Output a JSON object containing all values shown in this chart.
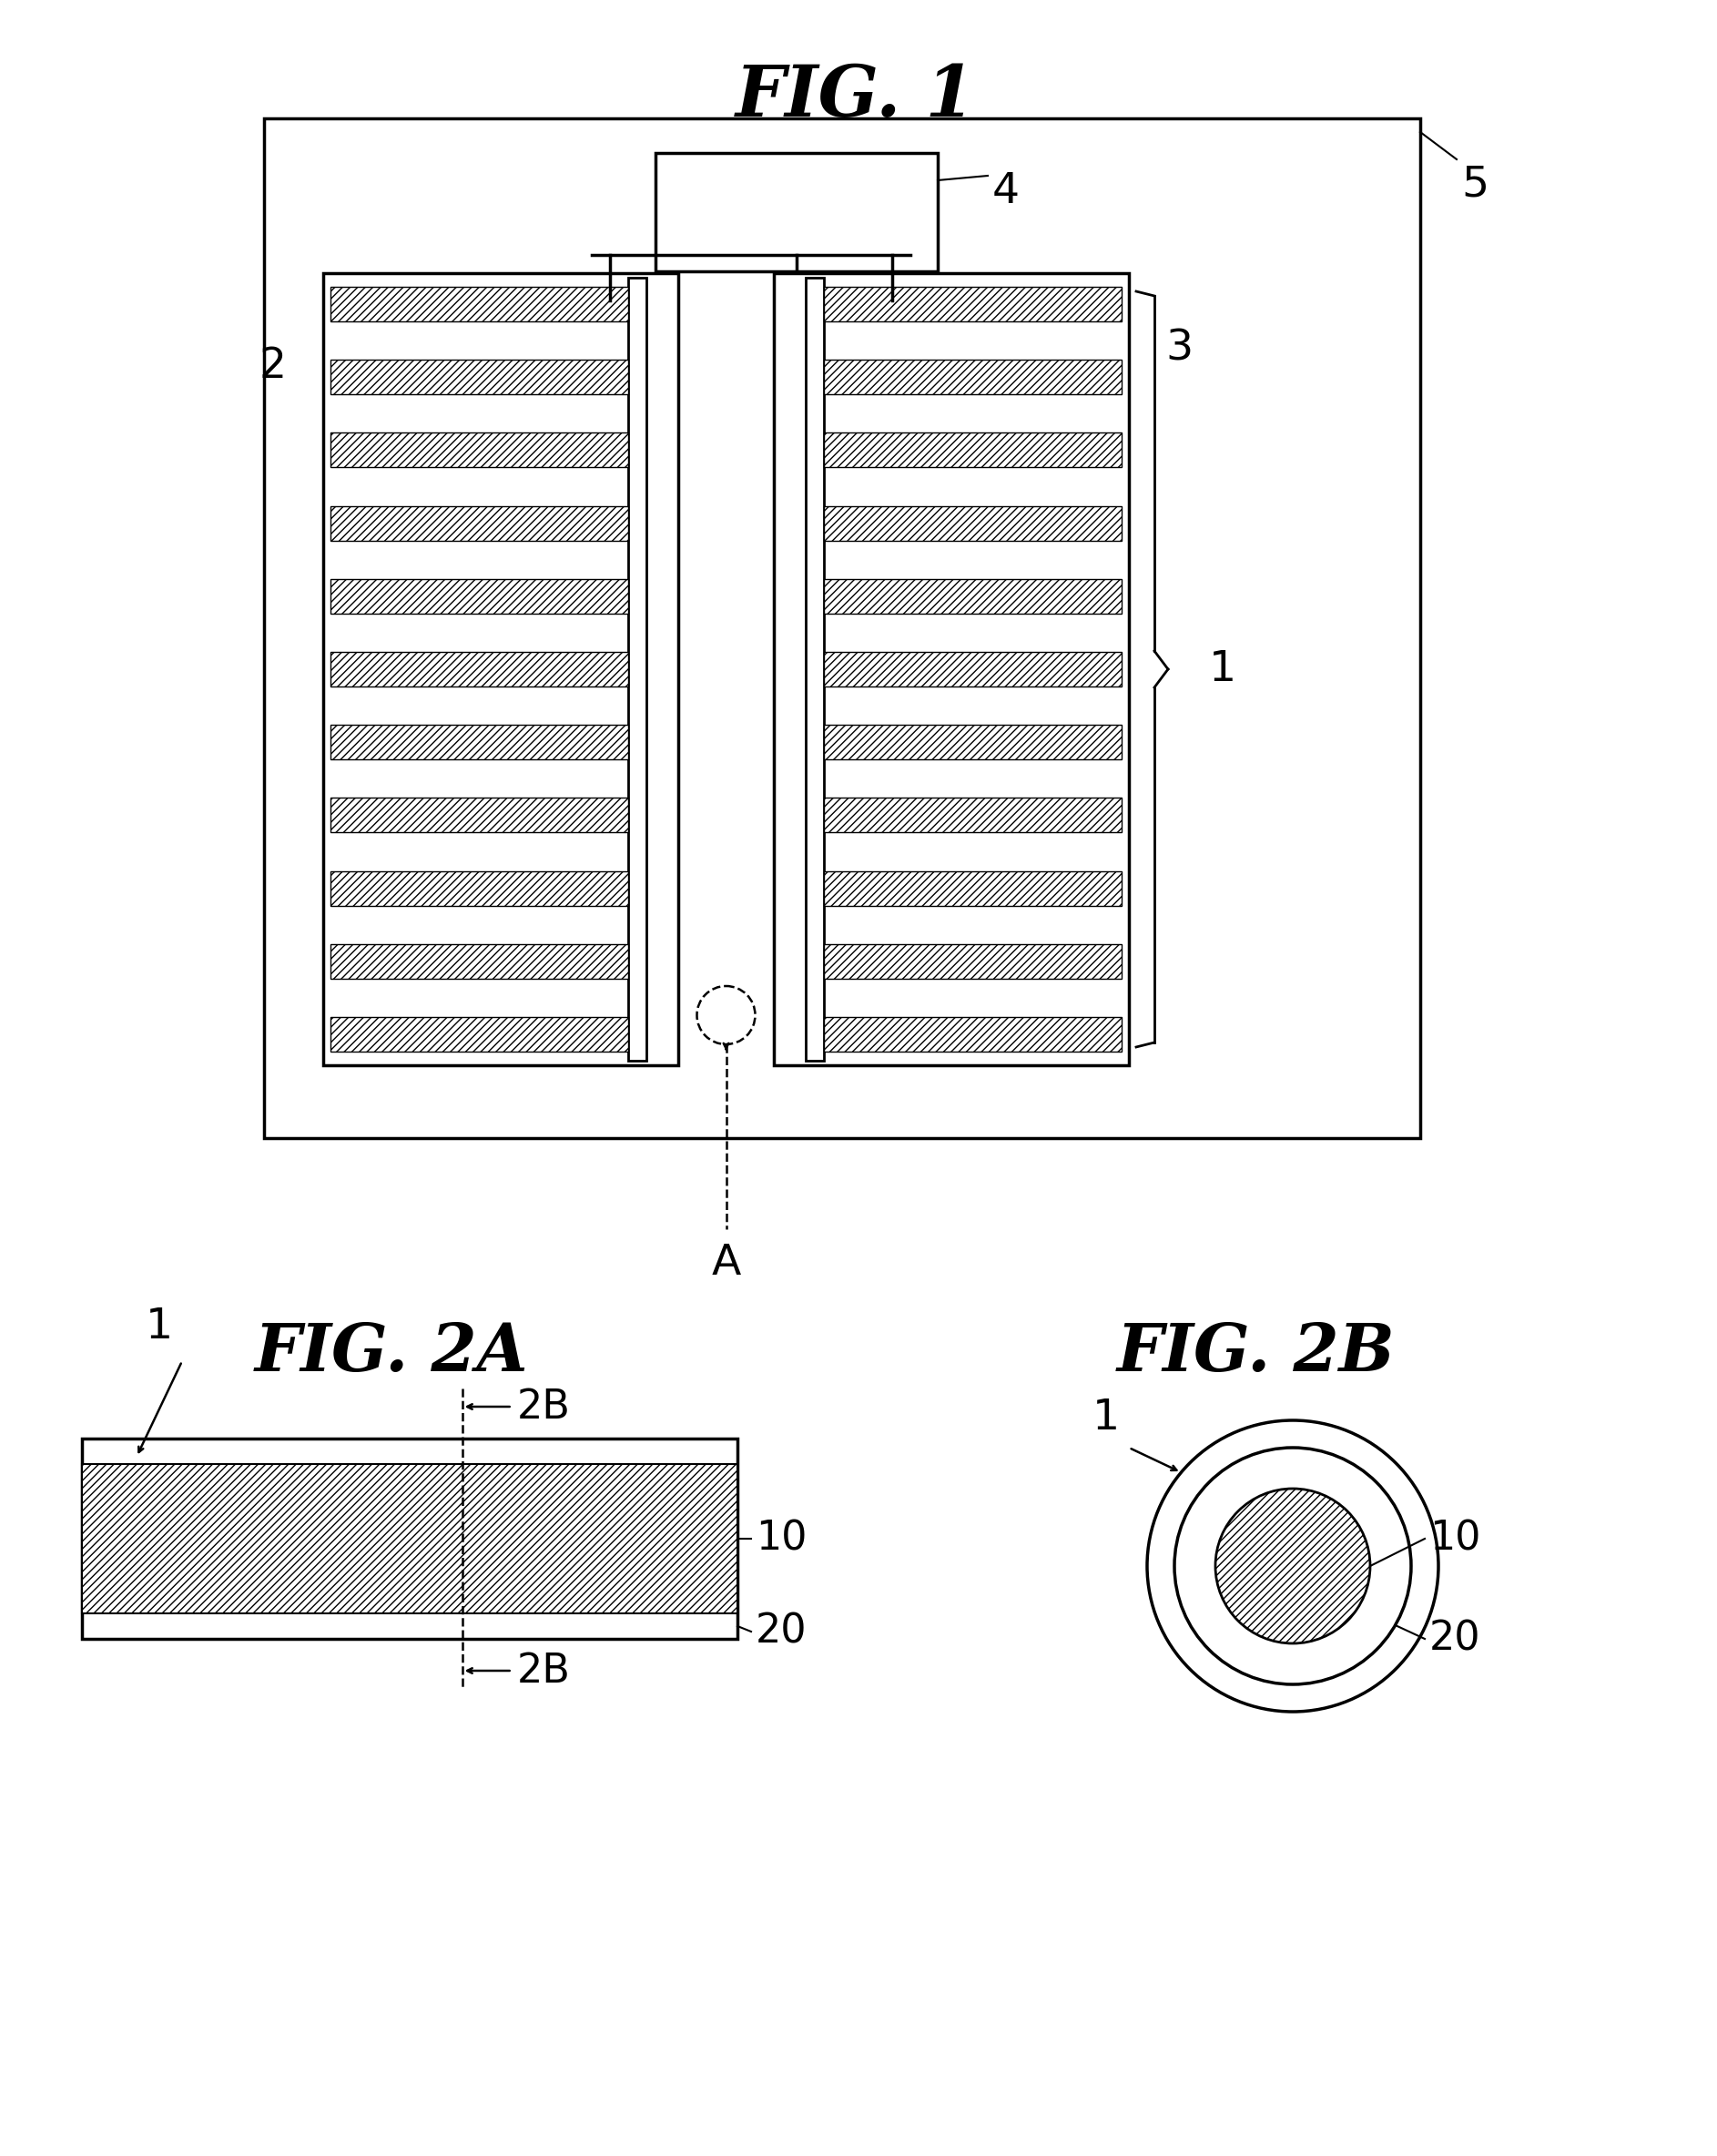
{
  "fig1_title": "FIG. 1",
  "fig2a_title": "FIG. 2A",
  "fig2b_title": "FIG. 2B",
  "bg_color": "#ffffff",
  "line_color": "#000000",
  "label_1": "1",
  "label_2": "2",
  "label_3": "3",
  "label_4": "4",
  "label_5": "5",
  "label_A": "A",
  "label_10": "10",
  "label_20": "20",
  "label_2B": "2B"
}
